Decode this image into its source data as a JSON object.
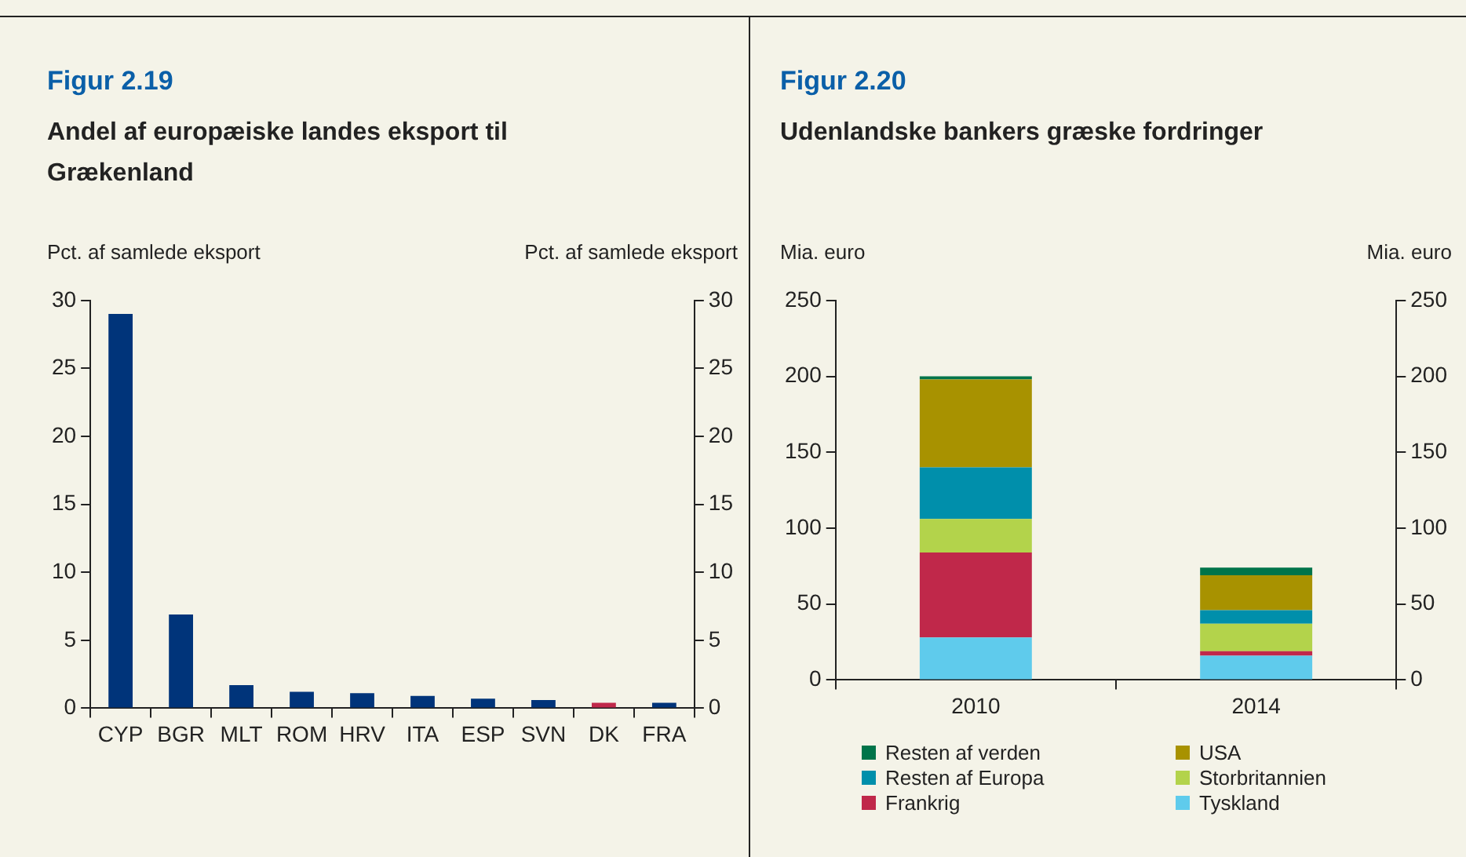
{
  "chart_data": [
    {
      "type": "bar",
      "title": "Figur 2.19",
      "subtitle": "Andel af europæiske landes eksport til Grækenland",
      "ylabel": "Pct. af samlede eksport",
      "y2label": "Pct. af samlede eksport",
      "categories": [
        "CYP",
        "BGR",
        "MLT",
        "ROM",
        "HRV",
        "ITA",
        "ESP",
        "SVN",
        "DK",
        "FRA"
      ],
      "values": [
        29.0,
        6.9,
        1.7,
        1.2,
        1.1,
        0.9,
        0.7,
        0.6,
        0.4,
        0.4
      ],
      "colors": [
        "#00347a",
        "#00347a",
        "#00347a",
        "#00347a",
        "#00347a",
        "#00347a",
        "#00347a",
        "#00347a",
        "#c0284a",
        "#00347a"
      ],
      "ylim": [
        0,
        30
      ],
      "yticks": [
        0,
        5,
        10,
        15,
        20,
        25,
        30
      ],
      "y2lim": [
        0,
        30
      ],
      "y2ticks": [
        0,
        5,
        10,
        15,
        20,
        25,
        30
      ],
      "grid": false,
      "legend": false
    },
    {
      "type": "bar",
      "title": "Figur 2.20",
      "subtitle": "Udenlandske bankers græske fordringer",
      "ylabel": "Mia. euro",
      "y2label": "Mia. euro",
      "categories": [
        "2010",
        "2014"
      ],
      "stacked": true,
      "series": [
        {
          "name": "Tyskland",
          "color": "#5fcbec",
          "values": [
            28,
            16
          ]
        },
        {
          "name": "Frankrig",
          "color": "#c0284a",
          "values": [
            56,
            3
          ]
        },
        {
          "name": "Storbritannien",
          "color": "#b3d34b",
          "values": [
            22,
            18
          ]
        },
        {
          "name": "Resten af Europa",
          "color": "#008fab",
          "values": [
            34,
            9
          ]
        },
        {
          "name": "USA",
          "color": "#a89200",
          "values": [
            58,
            23
          ]
        },
        {
          "name": "Resten af verden",
          "color": "#00744a",
          "values": [
            2,
            5
          ]
        }
      ],
      "ylim": [
        0,
        250
      ],
      "yticks": [
        0,
        50,
        100,
        150,
        200,
        250
      ],
      "y2lim": [
        0,
        250
      ],
      "y2ticks": [
        0,
        50,
        100,
        150,
        200,
        250
      ],
      "grid": false,
      "legend": "bottom"
    }
  ]
}
